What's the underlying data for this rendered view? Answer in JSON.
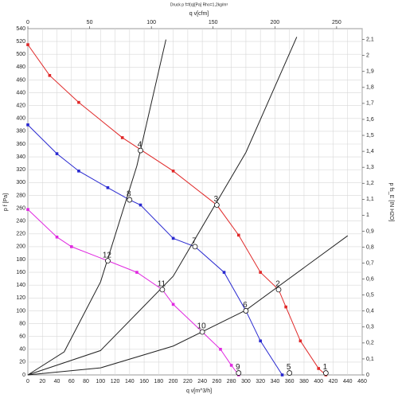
{
  "chart_data": {
    "type": "line",
    "title": "Druck p f=f(q)[Pa] Rho=1,2kg/m³",
    "x_label": "q v[m^3/h]",
    "x2_label": "q v[cfm]",
    "y_label": "p f [Pa]",
    "y2_label": "p fs_E [IN H2O]",
    "grid": true,
    "xlim": [
      0,
      460
    ],
    "xticks": [
      0,
      20,
      40,
      60,
      80,
      100,
      120,
      140,
      160,
      180,
      200,
      220,
      240,
      260,
      280,
      300,
      320,
      340,
      360,
      380,
      400,
      420,
      440,
      460
    ],
    "x2lim": [
      0,
      270.7
    ],
    "x2ticks": [
      0,
      50,
      100,
      150,
      200,
      250
    ],
    "ylim": [
      0,
      540
    ],
    "yticks": [
      0,
      20,
      40,
      60,
      80,
      100,
      120,
      140,
      160,
      180,
      200,
      220,
      240,
      260,
      280,
      300,
      320,
      340,
      360,
      380,
      400,
      420,
      440,
      460,
      480,
      500,
      520,
      540
    ],
    "y2lim": [
      0,
      2.168
    ],
    "y2ticks": [
      0,
      {
        "value": 0.1,
        "label": "0,1"
      },
      {
        "value": 0.2,
        "label": "0,2"
      },
      {
        "value": 0.3,
        "label": "0,3"
      },
      {
        "value": 0.4,
        "label": "0,4"
      },
      {
        "value": 0.5,
        "label": "0,5"
      },
      {
        "value": 0.6,
        "label": "0,6"
      },
      {
        "value": 0.7,
        "label": "0,7"
      },
      {
        "value": 0.8,
        "label": "0,8"
      },
      {
        "value": 0.9,
        "label": "0,9"
      },
      1,
      {
        "value": 1.1,
        "label": "1,1"
      },
      {
        "value": 1.2,
        "label": "1,2"
      },
      {
        "value": 1.3,
        "label": "1,3"
      },
      {
        "value": 1.4,
        "label": "1,4"
      },
      {
        "value": 1.5,
        "label": "1,5"
      },
      {
        "value": 1.6,
        "label": "1,6"
      },
      {
        "value": 1.7,
        "label": "1,7"
      },
      {
        "value": 1.8,
        "label": "1,8"
      },
      {
        "value": 1.9,
        "label": "1,9"
      },
      2,
      {
        "value": 2.1,
        "label": "2,1"
      }
    ],
    "series": [
      {
        "color": "#e02828",
        "markers": true,
        "x": [
          0,
          30,
          70,
          130,
          200,
          260,
          290,
          320,
          345,
          355,
          375,
          400,
          410
        ],
        "values": [
          515,
          467,
          425,
          370,
          318,
          265,
          218,
          160,
          133,
          106,
          53,
          10,
          0
        ]
      },
      {
        "color": "#2828d0",
        "markers": true,
        "x": [
          0,
          40,
          70,
          110,
          140,
          155,
          200,
          230,
          270,
          300,
          320,
          350
        ],
        "values": [
          390,
          345,
          318,
          292,
          273,
          265,
          213,
          200,
          160,
          100,
          53,
          0
        ]
      },
      {
        "color": "#e028e0",
        "markers": true,
        "x": [
          0,
          40,
          60,
          110,
          150,
          185,
          200,
          240,
          265,
          280,
          290
        ],
        "values": [
          258,
          215,
          200,
          178,
          160,
          133,
          110,
          67,
          40,
          15,
          0
        ]
      },
      {
        "color": "#222222",
        "markers": false,
        "x": [
          0,
          50,
          100,
          150,
          190
        ],
        "values": [
          0,
          36,
          145,
          326,
          523
        ]
      },
      {
        "color": "#222222",
        "markers": false,
        "x": [
          0,
          100,
          200,
          300,
          370
        ],
        "values": [
          0,
          38,
          154,
          347,
          527
        ]
      },
      {
        "color": "#222222",
        "markers": false,
        "x": [
          0,
          100,
          200,
          300,
          440
        ],
        "values": [
          0,
          11,
          45,
          101,
          217
        ]
      }
    ],
    "points": [
      {
        "label": "1",
        "x": 410,
        "y": 3
      },
      {
        "label": "2",
        "x": 345,
        "y": 133
      },
      {
        "label": "3",
        "x": 260,
        "y": 265
      },
      {
        "label": "4",
        "x": 155,
        "y": 350
      },
      {
        "label": "5",
        "x": 360,
        "y": 3
      },
      {
        "label": "6",
        "x": 300,
        "y": 100
      },
      {
        "label": "7",
        "x": 230,
        "y": 200
      },
      {
        "label": "8",
        "x": 140,
        "y": 273
      },
      {
        "label": "9",
        "x": 290,
        "y": 3
      },
      {
        "label": "10",
        "x": 240,
        "y": 67
      },
      {
        "label": "11",
        "x": 185,
        "y": 133
      },
      {
        "label": "12",
        "x": 110,
        "y": 178
      }
    ]
  }
}
